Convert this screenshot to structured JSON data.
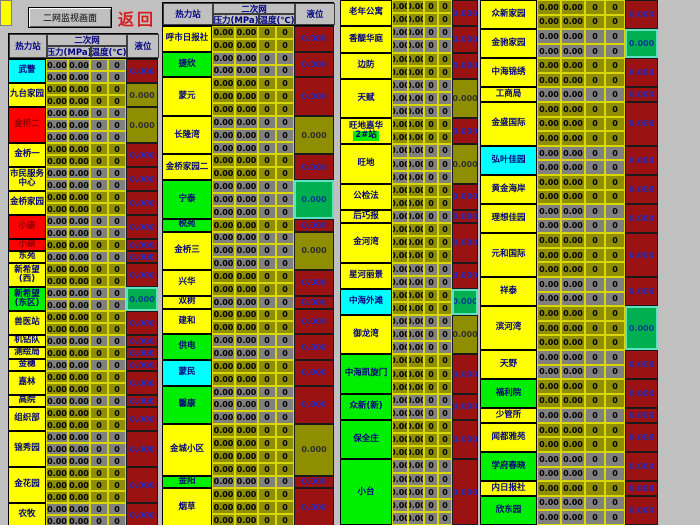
{
  "toolbar": {
    "monitor_button": "二网监视画面",
    "return_link": "返回"
  },
  "headers": {
    "station": "热力站",
    "network": "二次网",
    "pressure": "压力(MPa)",
    "temperature": "温度(℃)",
    "level": "液位"
  },
  "values": {
    "pressure": "0.00",
    "temperature": "0",
    "level": "0.000"
  },
  "colors": {
    "yellow": "#ffff00",
    "green": "#00ee00",
    "cyan": "#00ffff",
    "red": "#ff0000",
    "value_olive": "#8e8e00",
    "value_gray": "#808080",
    "level_red": "#9a1212",
    "level_green": "#00b050",
    "header_text": "#000080",
    "return_red": "#cc2222",
    "background": "#c0c0c0"
  },
  "tables": [
    {
      "id": "table-1",
      "has_header": true,
      "stations": [
        {
          "name": "武警",
          "color": "cyan",
          "rows": 2,
          "level": "red"
        },
        {
          "name": "九台家园",
          "color": "yellow",
          "rows": 2,
          "level": "olive"
        },
        {
          "name": "金桥二",
          "color": "red",
          "rows": 3,
          "level": "olive"
        },
        {
          "name": "金桥一",
          "color": "yellow",
          "rows": 2,
          "level": "red"
        },
        {
          "name": "市民服务中心",
          "color": "yellow",
          "rows": 2,
          "level": "red"
        },
        {
          "name": "金桥家园",
          "color": "yellow",
          "rows": 2,
          "level": "red"
        },
        {
          "name": "小康",
          "color": "red",
          "rows": 2,
          "level": "red"
        },
        {
          "name": "小康",
          "color": "red",
          "rows": 1,
          "level": "red"
        },
        {
          "name": "东苑",
          "color": "yellow",
          "rows": 1,
          "level": "red"
        },
        {
          "name": "新希望(西)",
          "color": "yellow",
          "rows": 2,
          "level": "red"
        },
        {
          "name": "新希望(东区)",
          "color": "green",
          "rows": 2,
          "level": "green"
        },
        {
          "name": "兽医站",
          "color": "yellow",
          "rows": 2,
          "level": "red"
        },
        {
          "name": "机钻队",
          "color": "yellow",
          "rows": 1,
          "level": "red"
        },
        {
          "name": "测绘局",
          "color": "yellow",
          "rows": 1,
          "level": "red"
        },
        {
          "name": "金穗",
          "color": "yellow",
          "rows": 1,
          "level": "red"
        },
        {
          "name": "嘉林",
          "color": "yellow",
          "rows": 2,
          "level": "red"
        },
        {
          "name": "高院",
          "color": "yellow",
          "rows": 1,
          "level": "red"
        },
        {
          "name": "组织部",
          "color": "yellow",
          "rows": 2,
          "level": "red"
        },
        {
          "name": "锦秀园",
          "color": "yellow",
          "rows": 3,
          "level": "red"
        },
        {
          "name": "金花园",
          "color": "yellow",
          "rows": 3,
          "level": "red"
        },
        {
          "name": "农牧",
          "color": "yellow",
          "rows": 2,
          "level": "red"
        }
      ]
    },
    {
      "id": "table-2",
      "has_header": true,
      "stations": [
        {
          "name": "呼市日报社",
          "color": "yellow",
          "rows": 2,
          "level": "red"
        },
        {
          "name": "捷欣",
          "color": "green",
          "rows": 2,
          "level": "red"
        },
        {
          "name": "蒙元",
          "color": "yellow",
          "rows": 3,
          "level": "red"
        },
        {
          "name": "长隆湾",
          "color": "yellow",
          "rows": 3,
          "level": "olive"
        },
        {
          "name": "金桥家园二",
          "color": "yellow",
          "rows": 2,
          "level": "red"
        },
        {
          "name": "宁泰",
          "color": "green",
          "rows": 3,
          "level": "green"
        },
        {
          "name": "税苑",
          "color": "green",
          "rows": 1,
          "level": "red"
        },
        {
          "name": "金桥三",
          "color": "yellow",
          "rows": 3,
          "level": "olive"
        },
        {
          "name": "兴华",
          "color": "yellow",
          "rows": 2,
          "level": "red"
        },
        {
          "name": "双树",
          "color": "yellow",
          "rows": 1,
          "level": "red"
        },
        {
          "name": "建和",
          "color": "yellow",
          "rows": 2,
          "level": "red"
        },
        {
          "name": "供电",
          "color": "green",
          "rows": 2,
          "level": "red"
        },
        {
          "name": "蒙民",
          "color": "cyan",
          "rows": 2,
          "level": "red"
        },
        {
          "name": "馨康",
          "color": "green",
          "rows": 3,
          "level": "red"
        },
        {
          "name": "金城小区",
          "color": "yellow",
          "rows": 4,
          "level": "olive"
        },
        {
          "name": "金阳",
          "color": "green",
          "rows": 1,
          "level": "red"
        },
        {
          "name": "烟草",
          "color": "yellow",
          "rows": 3,
          "level": "red"
        }
      ]
    },
    {
      "id": "table-3",
      "has_header": false,
      "stations": [
        {
          "name": "老年公寓",
          "color": "yellow",
          "rows": 2,
          "level": "red"
        },
        {
          "name": "香醍华庭",
          "color": "yellow",
          "rows": 2,
          "level": "red"
        },
        {
          "name": "边防",
          "color": "yellow",
          "rows": 2,
          "level": "red"
        },
        {
          "name": "天赋",
          "color": "yellow",
          "rows": 3,
          "level": "olive"
        },
        {
          "name": "旺地嘉华",
          "name2": "2#站",
          "color": "yellow",
          "rows": 2,
          "level": "red"
        },
        {
          "name": "旺地",
          "color": "yellow",
          "rows": 3,
          "level": "olive"
        },
        {
          "name": "公检法",
          "color": "yellow",
          "rows": 2,
          "level": "red"
        },
        {
          "name": "后巧报",
          "color": "yellow",
          "rows": 1,
          "level": "red"
        },
        {
          "name": "金河湾",
          "color": "yellow",
          "rows": 3,
          "level": "red"
        },
        {
          "name": "星河丽景",
          "color": "yellow",
          "rows": 2,
          "level": "red"
        },
        {
          "name": "中海外滩",
          "color": "cyan",
          "rows": 2,
          "level": "green"
        },
        {
          "name": "御龙湾",
          "color": "yellow",
          "rows": 3,
          "level": "olive"
        },
        {
          "name": "中海凯旋门",
          "color": "green",
          "rows": 3,
          "level": "red"
        },
        {
          "name": "众新(新)",
          "color": "green",
          "rows": 2,
          "level": "red"
        },
        {
          "name": "保全庄",
          "color": "green",
          "rows": 3,
          "level": "red"
        },
        {
          "name": "小台",
          "color": "green",
          "rows": 5,
          "level": "red"
        }
      ]
    },
    {
      "id": "table-4",
      "has_header": false,
      "stations": [
        {
          "name": "众新家园",
          "color": "yellow",
          "rows": 2,
          "level": "red"
        },
        {
          "name": "金驰家园",
          "color": "yellow",
          "rows": 2,
          "level": "green"
        },
        {
          "name": "中海锦绣",
          "color": "yellow",
          "rows": 2,
          "level": "red"
        },
        {
          "name": "工商局",
          "color": "yellow",
          "rows": 1,
          "level": "red"
        },
        {
          "name": "金盛国际",
          "color": "yellow",
          "rows": 3,
          "level": "red"
        },
        {
          "name": "弘叶佳园",
          "color": "cyan",
          "rows": 2,
          "level": "red"
        },
        {
          "name": "黄金海岸",
          "color": "yellow",
          "rows": 2,
          "level": "red"
        },
        {
          "name": "理想佳园",
          "color": "yellow",
          "rows": 2,
          "level": "red"
        },
        {
          "name": "元和国际",
          "color": "yellow",
          "rows": 3,
          "level": "red"
        },
        {
          "name": "祥泰",
          "color": "yellow",
          "rows": 2,
          "level": "red"
        },
        {
          "name": "滨河湾",
          "color": "yellow",
          "rows": 3,
          "level": "green"
        },
        {
          "name": "天野",
          "color": "yellow",
          "rows": 2,
          "level": "red"
        },
        {
          "name": "福利院",
          "color": "green",
          "rows": 2,
          "level": "red"
        },
        {
          "name": "少管所",
          "color": "yellow",
          "rows": 1,
          "level": "red"
        },
        {
          "name": "闻都雅苑",
          "color": "yellow",
          "rows": 2,
          "level": "red"
        },
        {
          "name": "学府春晓",
          "color": "green",
          "rows": 2,
          "level": "red"
        },
        {
          "name": "内日报社",
          "color": "yellow",
          "rows": 1,
          "level": "red"
        },
        {
          "name": "欣东园",
          "color": "green",
          "rows": 2,
          "level": "red"
        }
      ]
    }
  ]
}
